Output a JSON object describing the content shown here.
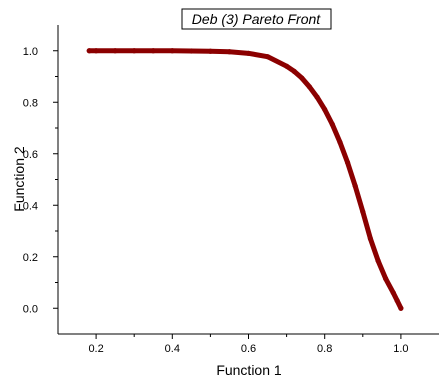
{
  "chart_data": {
    "type": "scatter",
    "title": "Deb (3) Pareto Front",
    "xlabel": "Function 1",
    "ylabel": "Function 2",
    "xlim": [
      0.1,
      1.1
    ],
    "ylim": [
      -0.1,
      1.1
    ],
    "x_ticks": [
      0.2,
      0.4,
      0.6,
      0.8,
      1.0
    ],
    "y_ticks": [
      0.0,
      0.2,
      0.4,
      0.6,
      0.8,
      1.0
    ],
    "x_tick_labels": [
      "0.2",
      "0.4",
      "0.6",
      "0.8",
      "1.0"
    ],
    "y_tick_labels": [
      "0.0",
      "0.2",
      "0.4",
      "0.6",
      "0.8",
      "1.0"
    ],
    "grid": false,
    "marker_color": "#8b0000",
    "series": [
      {
        "points": [
          [
            0.182,
            1.0
          ],
          [
            0.2,
            1.0
          ],
          [
            0.25,
            1.0
          ],
          [
            0.3,
            1.0
          ],
          [
            0.35,
            1.0
          ],
          [
            0.4,
            1.0
          ],
          [
            0.45,
            0.999
          ],
          [
            0.5,
            0.998
          ],
          [
            0.55,
            0.996
          ],
          [
            0.6,
            0.99
          ],
          [
            0.65,
            0.977
          ],
          [
            0.7,
            0.94
          ],
          [
            0.72,
            0.92
          ],
          [
            0.74,
            0.894
          ],
          [
            0.76,
            0.86
          ],
          [
            0.78,
            0.82
          ],
          [
            0.8,
            0.772
          ],
          [
            0.82,
            0.714
          ],
          [
            0.84,
            0.645
          ],
          [
            0.86,
            0.566
          ],
          [
            0.88,
            0.475
          ],
          [
            0.9,
            0.375
          ],
          [
            0.92,
            0.27
          ],
          [
            0.94,
            0.185
          ],
          [
            0.96,
            0.115
          ],
          [
            0.98,
            0.06
          ],
          [
            0.99,
            0.03
          ],
          [
            1.0,
            0.0
          ]
        ]
      }
    ]
  }
}
